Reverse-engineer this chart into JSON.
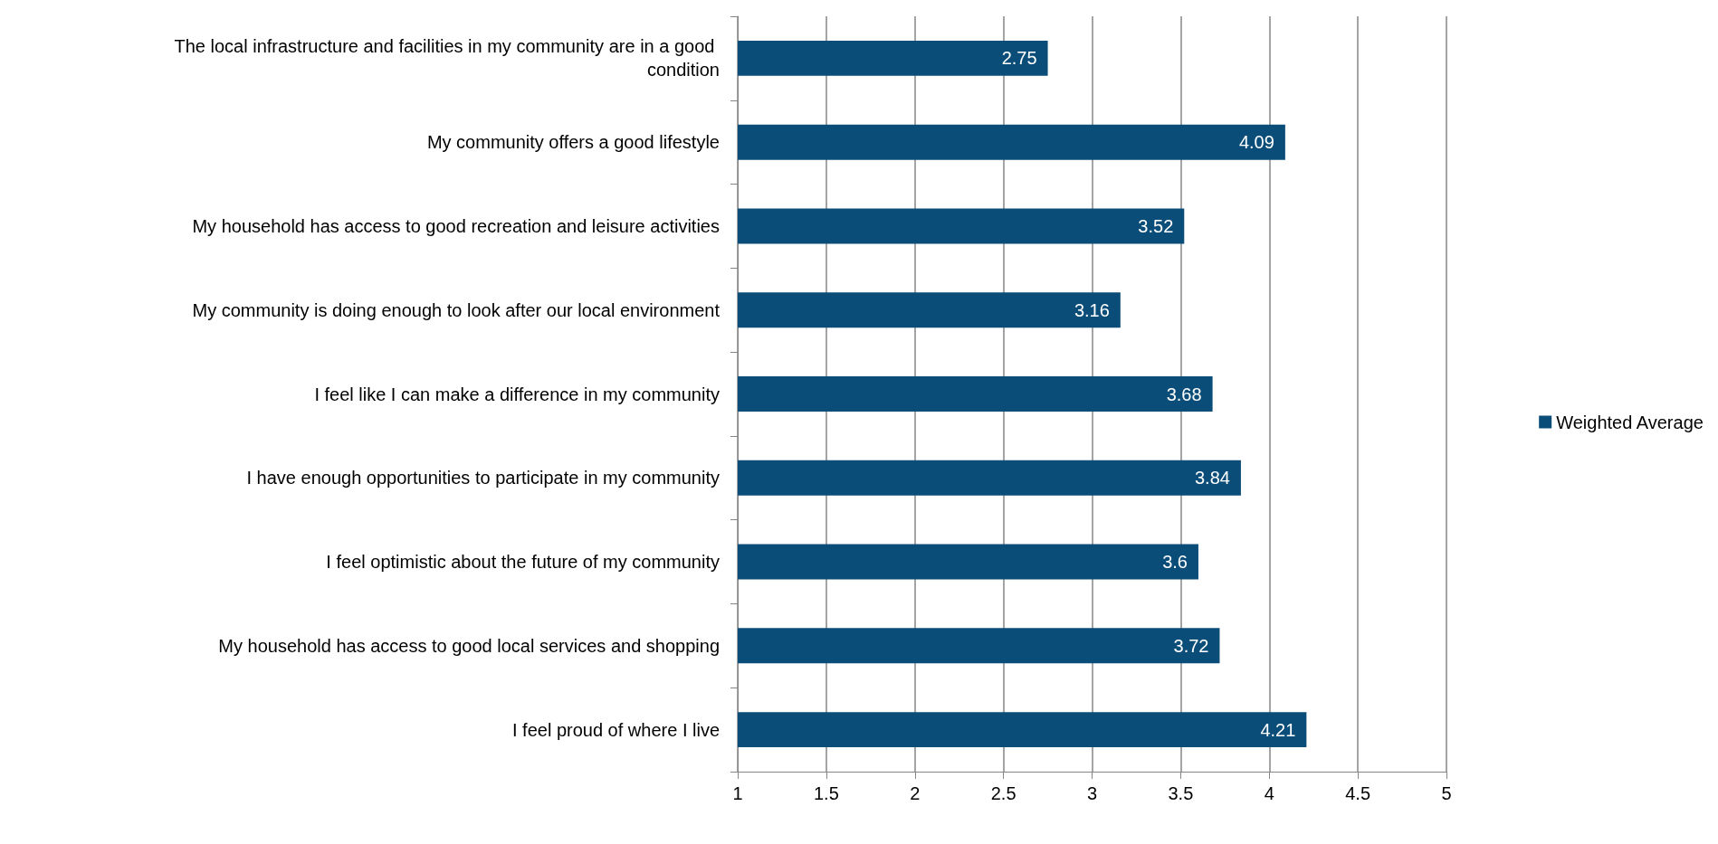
{
  "chart_data": {
    "type": "bar",
    "orientation": "horizontal",
    "categories": [
      "The local infrastructure and facilities in my community are in a good condition",
      "My community offers a good lifestyle",
      "My household has access to good recreation and leisure activities",
      "My community is doing enough to look after our local environment",
      "I feel like I can make a difference in my community",
      "I have enough opportunities to participate in my community",
      "I feel optimistic about the future of my community",
      "My household has access to good local services and shopping",
      "I feel proud of where I live"
    ],
    "series": [
      {
        "name": "Weighted Average",
        "color": "#0b4d79",
        "values": [
          2.75,
          4.09,
          3.52,
          3.16,
          3.68,
          3.84,
          3.6,
          3.72,
          4.21
        ]
      }
    ],
    "xlim": [
      1,
      5
    ],
    "xticks": [
      1,
      1.5,
      2,
      2.5,
      3,
      3.5,
      4,
      4.5,
      5
    ],
    "grid": "x",
    "legend": "right",
    "data_labels": true
  }
}
